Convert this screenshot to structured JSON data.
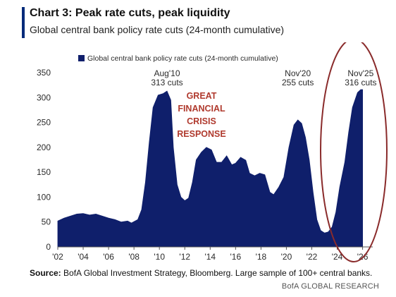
{
  "header": {
    "title": "Chart 3: Peak rate cuts, peak liquidity",
    "subtitle": "Global central bank policy rate cuts (24-month cumulative)"
  },
  "footer": {
    "source_label": "Source:",
    "source_text": "BofA Global Investment Strategy, Bloomberg. Large sample of 100+ central banks.",
    "brand": "BofA GLOBAL RESEARCH"
  },
  "colors": {
    "series": "#0f1f6b",
    "annotation_red": "#b03a2e",
    "ellipse": "#8a2b2b",
    "text": "#2b2b2b",
    "accent": "#002a7a"
  },
  "chart_data": {
    "type": "area",
    "legend": {
      "label": "Global central bank policy rate cuts (24-month cumulative)",
      "position": "top-left"
    },
    "ylim": [
      0,
      350
    ],
    "yticks": [
      0,
      50,
      100,
      150,
      200,
      250,
      300,
      350
    ],
    "xlim": [
      2002,
      2026.8
    ],
    "xticks": [
      2002,
      2004,
      2006,
      2008,
      2010,
      2012,
      2014,
      2016,
      2018,
      2020,
      2022,
      2024,
      2026
    ],
    "xtick_labels": [
      "'02",
      "'04",
      "'06",
      "'08",
      "'10",
      "'12",
      "'14",
      "'16",
      "'18",
      "'20",
      "'22",
      "'24",
      "'26"
    ],
    "grid": false,
    "series": [
      {
        "name": "Global central bank policy rate cuts (24-month cumulative)",
        "points": [
          [
            2002.0,
            52
          ],
          [
            2002.5,
            58
          ],
          [
            2003.0,
            62
          ],
          [
            2003.5,
            66
          ],
          [
            2004.0,
            67
          ],
          [
            2004.5,
            64
          ],
          [
            2005.0,
            66
          ],
          [
            2005.5,
            62
          ],
          [
            2006.0,
            58
          ],
          [
            2006.5,
            55
          ],
          [
            2007.0,
            50
          ],
          [
            2007.5,
            52
          ],
          [
            2007.8,
            48
          ],
          [
            2008.3,
            55
          ],
          [
            2008.6,
            75
          ],
          [
            2008.9,
            130
          ],
          [
            2009.2,
            210
          ],
          [
            2009.5,
            280
          ],
          [
            2009.9,
            305
          ],
          [
            2010.3,
            308
          ],
          [
            2010.6,
            313
          ],
          [
            2010.9,
            295
          ],
          [
            2011.1,
            200
          ],
          [
            2011.4,
            125
          ],
          [
            2011.7,
            100
          ],
          [
            2012.0,
            93
          ],
          [
            2012.3,
            98
          ],
          [
            2012.6,
            130
          ],
          [
            2012.9,
            175
          ],
          [
            2013.3,
            190
          ],
          [
            2013.7,
            200
          ],
          [
            2014.1,
            195
          ],
          [
            2014.5,
            170
          ],
          [
            2014.9,
            170
          ],
          [
            2015.3,
            183
          ],
          [
            2015.7,
            165
          ],
          [
            2016.0,
            168
          ],
          [
            2016.4,
            180
          ],
          [
            2016.8,
            174
          ],
          [
            2017.1,
            148
          ],
          [
            2017.5,
            143
          ],
          [
            2017.9,
            148
          ],
          [
            2018.3,
            145
          ],
          [
            2018.7,
            110
          ],
          [
            2019.0,
            105
          ],
          [
            2019.4,
            120
          ],
          [
            2019.8,
            140
          ],
          [
            2020.2,
            200
          ],
          [
            2020.6,
            245
          ],
          [
            2020.9,
            255
          ],
          [
            2021.2,
            248
          ],
          [
            2021.5,
            220
          ],
          [
            2021.8,
            175
          ],
          [
            2022.1,
            110
          ],
          [
            2022.4,
            55
          ],
          [
            2022.7,
            33
          ],
          [
            2023.0,
            28
          ],
          [
            2023.3,
            30
          ],
          [
            2023.6,
            40
          ],
          [
            2023.9,
            70
          ],
          [
            2024.2,
            120
          ],
          [
            2024.6,
            170
          ],
          [
            2024.9,
            230
          ],
          [
            2025.2,
            280
          ],
          [
            2025.6,
            310
          ],
          [
            2025.85,
            316
          ],
          [
            2026.0,
            316
          ]
        ]
      }
    ],
    "annotations": [
      {
        "year": 2010.6,
        "line1": "Aug'10",
        "line2": "313 cuts"
      },
      {
        "year": 2020.9,
        "line1": "Nov'20",
        "line2": "255 cuts"
      },
      {
        "year": 2025.85,
        "line1": "Nov'25",
        "line2": "316 cuts"
      }
    ],
    "callout": [
      "GREAT",
      "FINANCIAL",
      "CRISIS",
      "RESPONSE"
    ]
  }
}
